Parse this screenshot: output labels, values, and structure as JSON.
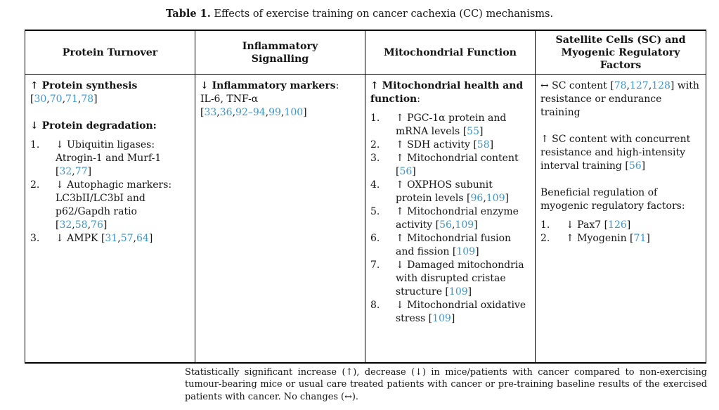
{
  "caption": {
    "label": "Table 1.",
    "text": "Effects of exercise training on cancer cachexia (CC) mechanisms."
  },
  "table": {
    "headers": [
      "Protein Turnover",
      "Inflammatory\nSignalling",
      "Mitochondrial Function",
      "Satellite Cells (SC) and\nMyogenic Regulatory\nFactors"
    ],
    "columns": [
      {
        "blocks": [
          {
            "t": "p",
            "x": "**↑ Protein synthesis**\n[30,70,71,78]"
          },
          {
            "t": "p",
            "x": "**↓ Protein degradation:**"
          },
          {
            "t": "ol",
            "items": [
              "↓ Ubiquitin ligases: Atrogin-1 and Murf-1 [32,77]",
              "↓ Autophagic markers: LC3bII/LC3bI and p62/Gapdh ratio [32,58,76]",
              "↓ AMPK [31,57,64]"
            ]
          }
        ]
      },
      {
        "blocks": [
          {
            "t": "p",
            "x": "**↓ Inflammatory markers**:\nIL-6, TNF-α\n[33,36,92–94,99,100]"
          }
        ]
      },
      {
        "blocks": [
          {
            "t": "p",
            "x": "**↑ Mitochondrial health and function**:"
          },
          {
            "t": "ol",
            "items": [
              "↑ PGC-1α protein and mRNA levels [55]",
              "↑ SDH activity [58]",
              "↑ Mitochondrial content [56]",
              "↑ OXPHOS subunit protein levels [96,109]",
              "↑ Mitochondrial enzyme activity [56,109]",
              "↑ Mitochondrial fusion and fission [109]",
              "↓ Damaged mitochondria with disrupted cristae structure [109]",
              "↓ Mitochondrial oxidative stress [109]"
            ]
          }
        ]
      },
      {
        "blocks": [
          {
            "t": "p",
            "x": "↔ SC content [78,127,128] with resistance or endurance training"
          },
          {
            "t": "p",
            "x": "↑ SC content with concurrent resistance and high-intensity interval training [56]"
          },
          {
            "t": "p",
            "x": "Beneficial regulation of myogenic regulatory factors:"
          },
          {
            "t": "ol",
            "items": [
              "↓ Pax7 [126]",
              "↑ Myogenin [71]"
            ]
          }
        ]
      }
    ]
  },
  "footnote": "Statistically significant increase (↑), decrease (↓) in mice/patients with cancer compared to non-exercising tumour-bearing mice or usual care treated patients with cancer or pre-training baseline results of the exercised patients with cancer. No changes (↔).",
  "colors": {
    "citation_link": "#3a97d2",
    "text": "#141414",
    "border": "#000000",
    "background": "#ffffff"
  }
}
